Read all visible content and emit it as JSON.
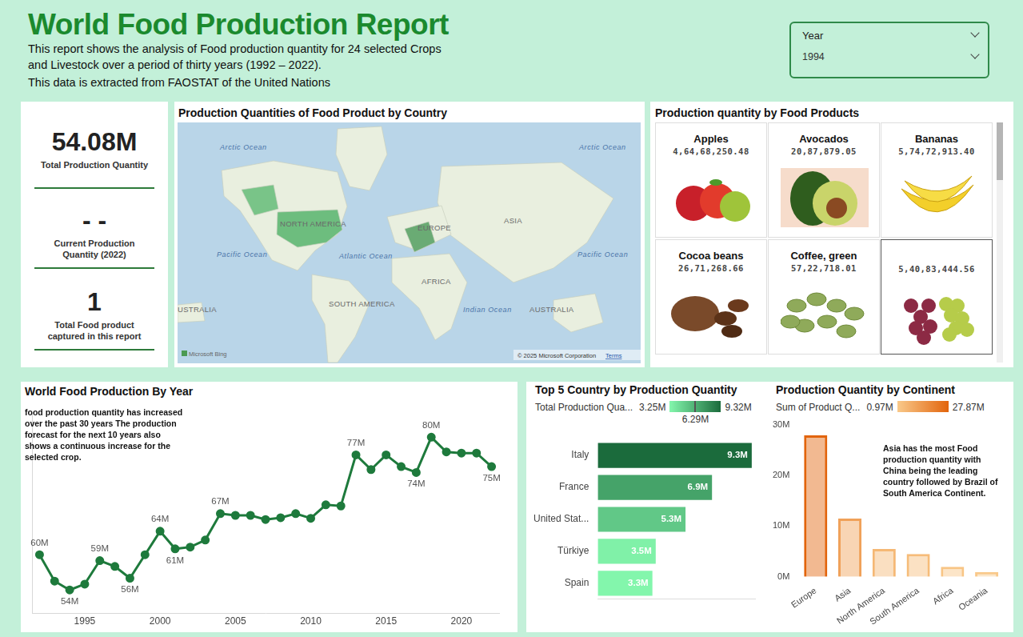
{
  "header": {
    "title": "World Food Production Report",
    "subtitle": [
      "This report shows the analysis of Food production quantity for 24 selected Crops",
      "and Livestock over a period of thirty years (1992 – 2022).",
      "This data is extracted from FAOSTAT of the United Nations"
    ]
  },
  "slicer": {
    "label": "Year",
    "value": "1994"
  },
  "kpis": [
    {
      "value": "54.08M",
      "label": "Total Production Quantity"
    },
    {
      "value": "- -",
      "label": "Current Production Quantity (2022)"
    },
    {
      "value": "1",
      "label": "Total Food product captured in this report"
    }
  ],
  "map": {
    "title": "Production Quantities of Food Product by Country",
    "labels": [
      "Arctic Ocean",
      "Arctic Ocean",
      "NORTH AMERICA",
      "ASIA",
      "EUROPE",
      "Pacific Ocean",
      "Atlantic Ocean",
      "Pacific Ocean",
      "AFRICA",
      "SOUTH AMERICA",
      "Indian Ocean",
      "AUSTRALIA",
      "USTRALIA"
    ],
    "attribution": "Microsoft Bing",
    "copyright": "© 2025 Microsoft Corporation",
    "terms": "Terms"
  },
  "products": {
    "title": "Production quantity by Food Products",
    "items": [
      {
        "name": "Apples",
        "value": "4,64,68,250.48"
      },
      {
        "name": "Avocados",
        "value": "20,87,879.05"
      },
      {
        "name": "Bananas",
        "value": "5,74,72,913.40"
      },
      {
        "name": "Cocoa beans",
        "value": "26,71,268.66"
      },
      {
        "name": "Coffee, green",
        "value": "57,22,718.01"
      },
      {
        "value": "5,40,83,444.56"
      }
    ]
  },
  "chart_data": [
    {
      "type": "line",
      "title": "World Food Production By Year",
      "annotation": "food production quantity has increased over the past 30 years The production forecast for the next 10 years also shows a continuous increase for the selected crop.",
      "x": [
        1992,
        1993,
        1994,
        1995,
        1996,
        1997,
        1998,
        1999,
        2000,
        2001,
        2002,
        2003,
        2004,
        2005,
        2006,
        2007,
        2008,
        2009,
        2010,
        2011,
        2012,
        2013,
        2014,
        2015,
        2016,
        2017,
        2018,
        2019,
        2020,
        2021,
        2022
      ],
      "values": [
        60,
        55.5,
        54,
        55,
        59,
        58,
        56,
        60,
        64,
        61,
        61.3,
        62.5,
        67,
        66.7,
        66.7,
        66,
        66.3,
        67,
        66.2,
        68.5,
        68.3,
        77,
        74.5,
        77,
        75,
        74,
        80,
        77.5,
        77.3,
        77.3,
        75
      ],
      "value_labels": [
        "60M",
        null,
        "54M",
        null,
        "59M",
        null,
        "56M",
        null,
        "64M",
        "61M",
        null,
        null,
        "67M",
        null,
        null,
        null,
        null,
        null,
        null,
        null,
        null,
        "77M",
        null,
        null,
        null,
        "74M",
        "80M",
        null,
        null,
        null,
        "75M"
      ],
      "data_labels": true,
      "color": "#1e7a3c",
      "marker": "circle",
      "xlim": [
        1991.5,
        2022.5
      ],
      "xticks": [
        1995,
        2000,
        2005,
        2010,
        2015,
        2020
      ],
      "ylim": [
        50,
        84
      ],
      "tick_labels": "x",
      "grid": false
    },
    {
      "type": "bar",
      "orientation": "horizontal",
      "title": "Top 5 Country by Production Quantity",
      "categories": [
        "Italy",
        "France",
        "United Stat...",
        "Türkiye",
        "Spain"
      ],
      "values": [
        9.3,
        6.9,
        5.3,
        3.5,
        3.3
      ],
      "value_labels": [
        "9.3M",
        "6.9M",
        "5.3M",
        "3.5M",
        "3.3M"
      ],
      "data_labels": true,
      "xlim": [
        0,
        9.5
      ],
      "tick_labels": "y",
      "grid": false,
      "colorbar": {
        "title": "Total Production Qua...",
        "range": [
          3.25,
          9.32
        ],
        "ticks": [
          {
            "value": 3.25,
            "label": "3.25M"
          },
          {
            "value": 6.29,
            "label": "6.29M"
          },
          {
            "value": 9.32,
            "label": "9.32M"
          }
        ],
        "colors": [
          "#84f7ad",
          "#1b6b3c"
        ]
      }
    },
    {
      "type": "bar",
      "title": "Production Quantity by Continent",
      "annotation": "Asia has the most Food production quantity with China  being the leading country followed by Brazil of South America Continent.",
      "categories": [
        "Europe",
        "Asia",
        "North America",
        "South America",
        "Africa",
        "Oceania"
      ],
      "values": [
        27.87,
        11.5,
        5.5,
        4.5,
        2.0,
        0.97
      ],
      "ylim": [
        0,
        30
      ],
      "yticks": [
        {
          "value": 0,
          "label": "0M"
        },
        {
          "value": 10,
          "label": "10M"
        },
        {
          "value": 20,
          "label": "20M"
        },
        {
          "value": 30,
          "label": "30M"
        }
      ],
      "grid": false,
      "colorbar": {
        "title": "Sum of Product Q...",
        "range": [
          0.97,
          27.87
        ],
        "ticks": [
          {
            "value": 0.97,
            "label": "0.97M"
          },
          {
            "value": 27.87,
            "label": "27.87M"
          }
        ],
        "colors": [
          "#f9c98a",
          "#e2640c"
        ]
      }
    }
  ]
}
